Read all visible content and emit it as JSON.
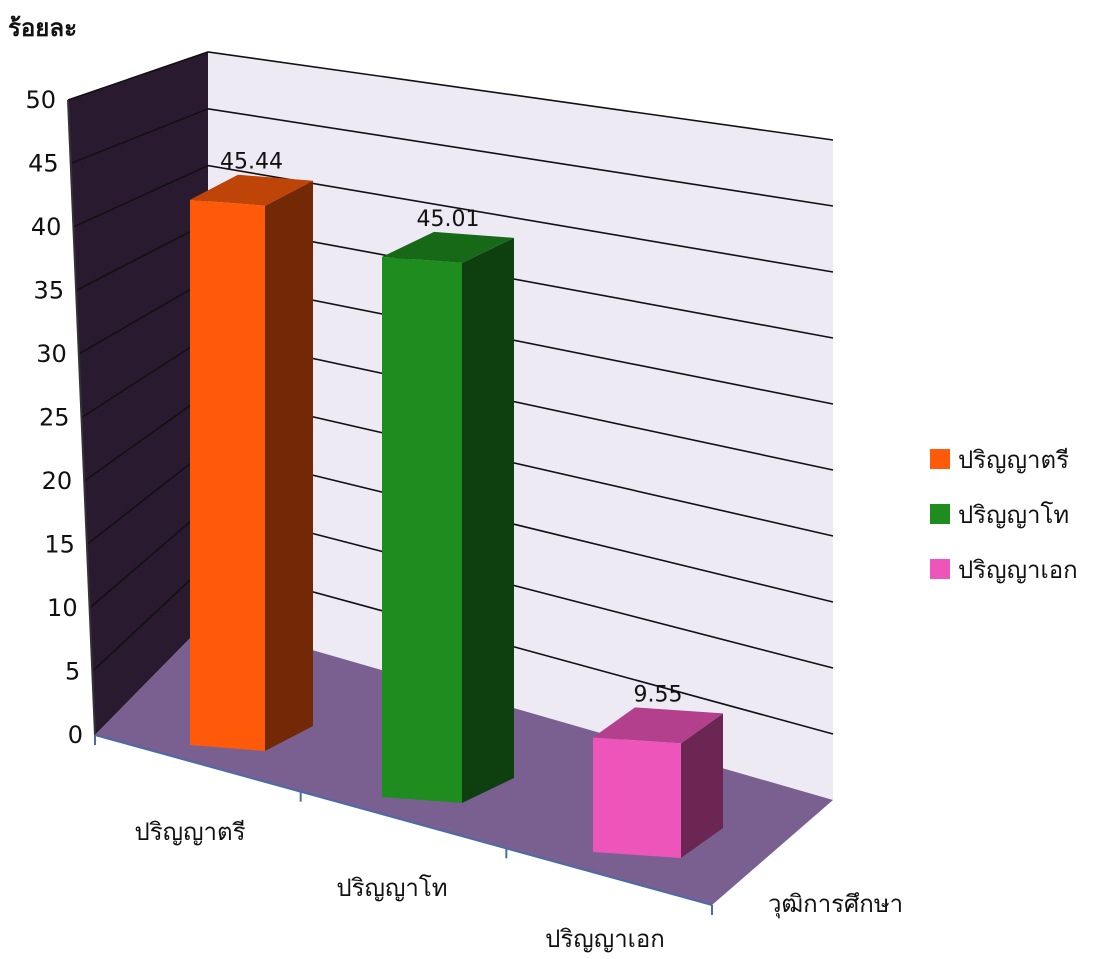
{
  "chart_data": {
    "type": "bar",
    "style": "3d-column",
    "ylabel": "ร้อยละ",
    "xlabel": "",
    "depth_axis_label": "วุฒิการศึกษา",
    "ylim": [
      0,
      50
    ],
    "yticks": [
      0,
      5,
      10,
      15,
      20,
      25,
      30,
      35,
      40,
      45,
      50
    ],
    "grid": true,
    "legend_position": "right",
    "categories": [
      "ปริญญาตรี",
      "ปริญญาโท",
      "ปริญญาเอก"
    ],
    "series": [
      {
        "name": "ปริญญาตรี",
        "color": "#ff5a0a",
        "value": 45.44,
        "label": "45.44"
      },
      {
        "name": "ปริญญาโท",
        "color": "#1e8c1e",
        "value": 45.01,
        "label": "45.01"
      },
      {
        "name": "ปริญญาเอก",
        "color": "#ee55bb",
        "value": 9.55,
        "label": "9.55"
      }
    ],
    "wall_colors": {
      "back": "#eeeaf4",
      "side": "#2a1a30",
      "floor": "#7a6090"
    }
  }
}
